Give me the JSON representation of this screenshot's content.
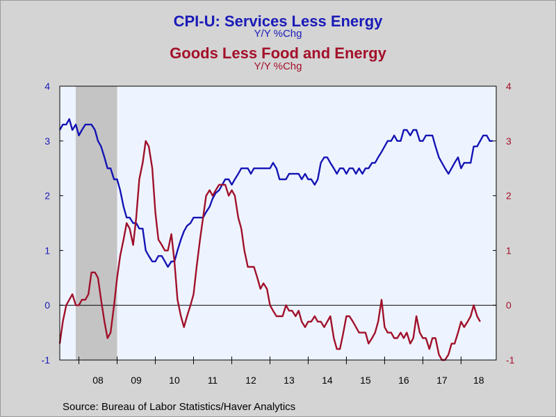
{
  "chart_data": {
    "type": "line",
    "title": "CPI-U: Services Less Energy",
    "subtitle": "Y/Y %Chg",
    "title2": "Goods Less Food and Energy",
    "subtitle2": "Y/Y %Chg",
    "source": "Source:  Bureau of Labor Statistics/Haver Analytics",
    "ylim": [
      -1,
      4
    ],
    "yticks": [
      -1,
      0,
      1,
      2,
      3,
      4
    ],
    "x_tick_labels": [
      "08",
      "09",
      "10",
      "11",
      "12",
      "13",
      "14",
      "15",
      "16",
      "17",
      "18"
    ],
    "xlim": [
      2007.5,
      2018.92
    ],
    "recession": [
      2007.917,
      2009.0
    ],
    "grid": false,
    "colors": {
      "services": "#1414b4",
      "goods": "#a0102a",
      "recession": "#c4c4c4",
      "plot_bg": "#eef4ff"
    },
    "series": [
      {
        "key": "services",
        "axis": "left",
        "points": [
          [
            2007.5,
            3.2
          ],
          [
            2007.58,
            3.3
          ],
          [
            2007.67,
            3.3
          ],
          [
            2007.75,
            3.4
          ],
          [
            2007.83,
            3.2
          ],
          [
            2007.92,
            3.3
          ],
          [
            2008.0,
            3.1
          ],
          [
            2008.08,
            3.2
          ],
          [
            2008.17,
            3.3
          ],
          [
            2008.25,
            3.3
          ],
          [
            2008.33,
            3.3
          ],
          [
            2008.42,
            3.2
          ],
          [
            2008.5,
            3.0
          ],
          [
            2008.58,
            2.9
          ],
          [
            2008.67,
            2.7
          ],
          [
            2008.75,
            2.5
          ],
          [
            2008.83,
            2.5
          ],
          [
            2008.92,
            2.3
          ],
          [
            2009.0,
            2.3
          ],
          [
            2009.08,
            2.1
          ],
          [
            2009.17,
            1.8
          ],
          [
            2009.25,
            1.6
          ],
          [
            2009.33,
            1.6
          ],
          [
            2009.42,
            1.5
          ],
          [
            2009.5,
            1.5
          ],
          [
            2009.58,
            1.4
          ],
          [
            2009.67,
            1.4
          ],
          [
            2009.75,
            1.0
          ],
          [
            2009.83,
            0.9
          ],
          [
            2009.92,
            0.8
          ],
          [
            2010.0,
            0.8
          ],
          [
            2010.08,
            0.9
          ],
          [
            2010.17,
            0.9
          ],
          [
            2010.25,
            0.8
          ],
          [
            2010.33,
            0.7
          ],
          [
            2010.42,
            0.8
          ],
          [
            2010.5,
            0.8
          ],
          [
            2010.58,
            1.0
          ],
          [
            2010.67,
            1.2
          ],
          [
            2010.75,
            1.35
          ],
          [
            2010.83,
            1.45
          ],
          [
            2010.92,
            1.5
          ],
          [
            2011.0,
            1.6
          ],
          [
            2011.08,
            1.6
          ],
          [
            2011.17,
            1.6
          ],
          [
            2011.25,
            1.6
          ],
          [
            2011.33,
            1.7
          ],
          [
            2011.42,
            1.8
          ],
          [
            2011.5,
            1.95
          ],
          [
            2011.58,
            2.05
          ],
          [
            2011.67,
            2.1
          ],
          [
            2011.75,
            2.2
          ],
          [
            2011.83,
            2.3
          ],
          [
            2011.92,
            2.3
          ],
          [
            2012.0,
            2.2
          ],
          [
            2012.08,
            2.3
          ],
          [
            2012.17,
            2.4
          ],
          [
            2012.25,
            2.5
          ],
          [
            2012.33,
            2.5
          ],
          [
            2012.42,
            2.5
          ],
          [
            2012.5,
            2.4
          ],
          [
            2012.58,
            2.5
          ],
          [
            2012.67,
            2.5
          ],
          [
            2012.75,
            2.5
          ],
          [
            2012.83,
            2.5
          ],
          [
            2012.92,
            2.5
          ],
          [
            2013.0,
            2.5
          ],
          [
            2013.08,
            2.6
          ],
          [
            2013.17,
            2.5
          ],
          [
            2013.25,
            2.3
          ],
          [
            2013.33,
            2.3
          ],
          [
            2013.42,
            2.3
          ],
          [
            2013.5,
            2.4
          ],
          [
            2013.58,
            2.4
          ],
          [
            2013.67,
            2.4
          ],
          [
            2013.75,
            2.4
          ],
          [
            2013.83,
            2.3
          ],
          [
            2013.92,
            2.4
          ],
          [
            2014.0,
            2.3
          ],
          [
            2014.08,
            2.3
          ],
          [
            2014.17,
            2.2
          ],
          [
            2014.25,
            2.3
          ],
          [
            2014.33,
            2.6
          ],
          [
            2014.42,
            2.7
          ],
          [
            2014.5,
            2.7
          ],
          [
            2014.58,
            2.6
          ],
          [
            2014.67,
            2.5
          ],
          [
            2014.75,
            2.4
          ],
          [
            2014.83,
            2.5
          ],
          [
            2014.92,
            2.5
          ],
          [
            2015.0,
            2.4
          ],
          [
            2015.08,
            2.5
          ],
          [
            2015.17,
            2.5
          ],
          [
            2015.25,
            2.4
          ],
          [
            2015.33,
            2.5
          ],
          [
            2015.42,
            2.4
          ],
          [
            2015.5,
            2.5
          ],
          [
            2015.58,
            2.5
          ],
          [
            2015.67,
            2.6
          ],
          [
            2015.75,
            2.6
          ],
          [
            2015.83,
            2.7
          ],
          [
            2015.92,
            2.8
          ],
          [
            2016.0,
            2.9
          ],
          [
            2016.08,
            3.0
          ],
          [
            2016.17,
            3.0
          ],
          [
            2016.25,
            3.1
          ],
          [
            2016.33,
            3.0
          ],
          [
            2016.42,
            3.0
          ],
          [
            2016.5,
            3.2
          ],
          [
            2016.58,
            3.2
          ],
          [
            2016.67,
            3.1
          ],
          [
            2016.75,
            3.2
          ],
          [
            2016.83,
            3.2
          ],
          [
            2016.92,
            3.0
          ],
          [
            2017.0,
            3.0
          ],
          [
            2017.08,
            3.1
          ],
          [
            2017.17,
            3.1
          ],
          [
            2017.25,
            3.1
          ],
          [
            2017.33,
            2.9
          ],
          [
            2017.42,
            2.7
          ],
          [
            2017.5,
            2.6
          ],
          [
            2017.58,
            2.5
          ],
          [
            2017.67,
            2.4
          ],
          [
            2017.75,
            2.5
          ],
          [
            2017.83,
            2.6
          ],
          [
            2017.92,
            2.7
          ],
          [
            2018.0,
            2.5
          ],
          [
            2018.08,
            2.6
          ],
          [
            2018.17,
            2.6
          ],
          [
            2018.25,
            2.6
          ],
          [
            2018.33,
            2.9
          ],
          [
            2018.42,
            2.9
          ],
          [
            2018.5,
            3.0
          ],
          [
            2018.58,
            3.1
          ],
          [
            2018.67,
            3.1
          ],
          [
            2018.75,
            3.0
          ],
          [
            2018.83,
            3.0
          ]
        ]
      },
      {
        "key": "goods",
        "axis": "right",
        "points": [
          [
            2007.5,
            -0.7
          ],
          [
            2007.58,
            -0.3
          ],
          [
            2007.67,
            0.0
          ],
          [
            2007.75,
            0.1
          ],
          [
            2007.83,
            0.2
          ],
          [
            2007.92,
            0.0
          ],
          [
            2008.0,
            0.0
          ],
          [
            2008.08,
            0.1
          ],
          [
            2008.17,
            0.1
          ],
          [
            2008.25,
            0.2
          ],
          [
            2008.33,
            0.6
          ],
          [
            2008.42,
            0.6
          ],
          [
            2008.5,
            0.5
          ],
          [
            2008.58,
            0.1
          ],
          [
            2008.67,
            -0.3
          ],
          [
            2008.75,
            -0.6
          ],
          [
            2008.83,
            -0.5
          ],
          [
            2008.92,
            0.0
          ],
          [
            2009.0,
            0.5
          ],
          [
            2009.08,
            0.9
          ],
          [
            2009.17,
            1.2
          ],
          [
            2009.25,
            1.5
          ],
          [
            2009.33,
            1.4
          ],
          [
            2009.42,
            1.1
          ],
          [
            2009.5,
            1.6
          ],
          [
            2009.58,
            2.3
          ],
          [
            2009.67,
            2.6
          ],
          [
            2009.75,
            3.0
          ],
          [
            2009.83,
            2.9
          ],
          [
            2009.92,
            2.5
          ],
          [
            2010.0,
            1.7
          ],
          [
            2010.08,
            1.2
          ],
          [
            2010.17,
            1.1
          ],
          [
            2010.25,
            1.0
          ],
          [
            2010.33,
            1.0
          ],
          [
            2010.42,
            1.3
          ],
          [
            2010.5,
            0.8
          ],
          [
            2010.58,
            0.1
          ],
          [
            2010.67,
            -0.2
          ],
          [
            2010.75,
            -0.4
          ],
          [
            2010.83,
            -0.2
          ],
          [
            2010.92,
            0.0
          ],
          [
            2011.0,
            0.2
          ],
          [
            2011.08,
            0.7
          ],
          [
            2011.17,
            1.2
          ],
          [
            2011.25,
            1.6
          ],
          [
            2011.33,
            2.0
          ],
          [
            2011.42,
            2.1
          ],
          [
            2011.5,
            2.0
          ],
          [
            2011.58,
            2.1
          ],
          [
            2011.67,
            2.2
          ],
          [
            2011.75,
            2.2
          ],
          [
            2011.83,
            2.2
          ],
          [
            2011.92,
            2.0
          ],
          [
            2012.0,
            2.1
          ],
          [
            2012.08,
            2.0
          ],
          [
            2012.17,
            1.6
          ],
          [
            2012.25,
            1.4
          ],
          [
            2012.33,
            1.0
          ],
          [
            2012.42,
            0.7
          ],
          [
            2012.5,
            0.7
          ],
          [
            2012.58,
            0.7
          ],
          [
            2012.67,
            0.5
          ],
          [
            2012.75,
            0.3
          ],
          [
            2012.83,
            0.4
          ],
          [
            2012.92,
            0.3
          ],
          [
            2013.0,
            0.0
          ],
          [
            2013.08,
            -0.1
          ],
          [
            2013.17,
            -0.2
          ],
          [
            2013.25,
            -0.2
          ],
          [
            2013.33,
            -0.2
          ],
          [
            2013.42,
            0.0
          ],
          [
            2013.5,
            -0.1
          ],
          [
            2013.58,
            -0.1
          ],
          [
            2013.67,
            -0.2
          ],
          [
            2013.75,
            -0.1
          ],
          [
            2013.83,
            -0.3
          ],
          [
            2013.92,
            -0.4
          ],
          [
            2014.0,
            -0.3
          ],
          [
            2014.08,
            -0.3
          ],
          [
            2014.17,
            -0.2
          ],
          [
            2014.25,
            -0.3
          ],
          [
            2014.33,
            -0.3
          ],
          [
            2014.42,
            -0.4
          ],
          [
            2014.5,
            -0.3
          ],
          [
            2014.58,
            -0.2
          ],
          [
            2014.67,
            -0.6
          ],
          [
            2014.75,
            -0.8
          ],
          [
            2014.83,
            -0.8
          ],
          [
            2014.92,
            -0.5
          ],
          [
            2015.0,
            -0.2
          ],
          [
            2015.08,
            -0.2
          ],
          [
            2015.17,
            -0.3
          ],
          [
            2015.25,
            -0.4
          ],
          [
            2015.33,
            -0.5
          ],
          [
            2015.42,
            -0.5
          ],
          [
            2015.5,
            -0.5
          ],
          [
            2015.58,
            -0.7
          ],
          [
            2015.67,
            -0.6
          ],
          [
            2015.75,
            -0.5
          ],
          [
            2015.83,
            -0.3
          ],
          [
            2015.92,
            0.1
          ],
          [
            2016.0,
            -0.4
          ],
          [
            2016.08,
            -0.5
          ],
          [
            2016.17,
            -0.5
          ],
          [
            2016.25,
            -0.6
          ],
          [
            2016.33,
            -0.6
          ],
          [
            2016.42,
            -0.5
          ],
          [
            2016.5,
            -0.6
          ],
          [
            2016.58,
            -0.5
          ],
          [
            2016.67,
            -0.7
          ],
          [
            2016.75,
            -0.6
          ],
          [
            2016.83,
            -0.2
          ],
          [
            2016.92,
            -0.5
          ],
          [
            2017.0,
            -0.6
          ],
          [
            2017.08,
            -0.6
          ],
          [
            2017.17,
            -0.8
          ],
          [
            2017.25,
            -0.6
          ],
          [
            2017.33,
            -0.6
          ],
          [
            2017.42,
            -0.9
          ],
          [
            2017.5,
            -1.0
          ],
          [
            2017.58,
            -1.0
          ],
          [
            2017.67,
            -0.9
          ],
          [
            2017.75,
            -0.7
          ],
          [
            2017.83,
            -0.7
          ],
          [
            2017.92,
            -0.5
          ],
          [
            2018.0,
            -0.3
          ],
          [
            2018.08,
            -0.4
          ],
          [
            2018.17,
            -0.3
          ],
          [
            2018.25,
            -0.2
          ],
          [
            2018.33,
            0.0
          ],
          [
            2018.42,
            -0.2
          ],
          [
            2018.5,
            -0.3
          ]
        ]
      }
    ]
  }
}
